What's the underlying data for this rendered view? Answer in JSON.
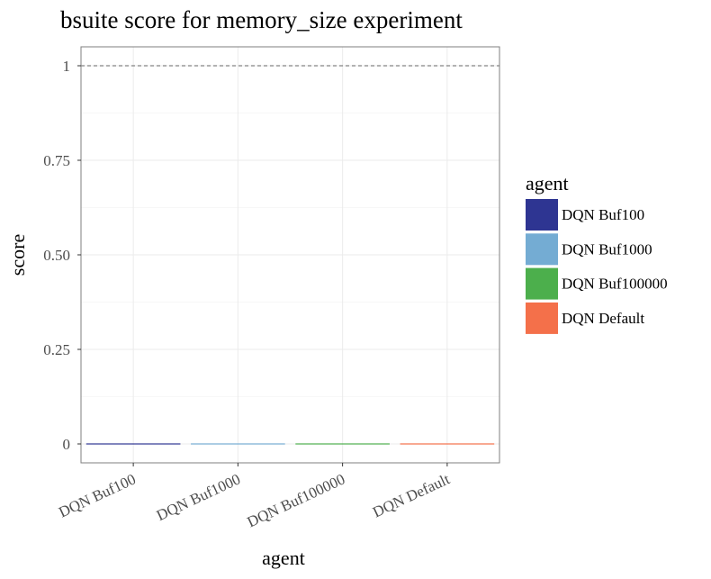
{
  "chart_data": {
    "type": "bar",
    "title": "bsuite score for memory_size experiment",
    "xlabel": "agent",
    "ylabel": "score",
    "categories": [
      "DQN Buf100",
      "DQN Buf1000",
      "DQN Buf100000",
      "DQN Default"
    ],
    "values": [
      0,
      0,
      0,
      0
    ],
    "colors": [
      "#2e3592",
      "#74acd3",
      "#4caf4c",
      "#f4704a"
    ],
    "ylim": [
      -0.05,
      1.05
    ],
    "yticks": [
      0,
      0.25,
      0.5,
      0.75,
      1
    ],
    "ytick_labels": [
      "0",
      "0.25",
      "0.50",
      "0.75",
      "1"
    ],
    "reference_line": 1,
    "grid": true,
    "legend": {
      "title": "agent",
      "position": "right",
      "entries": [
        "DQN Buf100",
        "DQN Buf1000",
        "DQN Buf100000",
        "DQN Default"
      ]
    }
  }
}
